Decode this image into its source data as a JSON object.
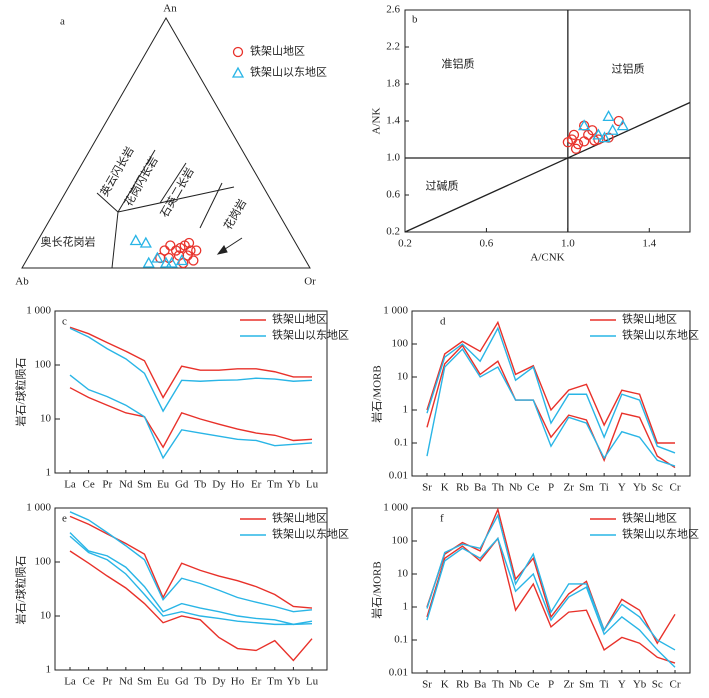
{
  "chart_data": [
    {
      "type": "ternary",
      "label": "a",
      "vertex_labels": [
        "An",
        "Ab",
        "Or"
      ],
      "field_labels": [
        "奥长花岗岩",
        "英云闪长岩",
        "花岗闪长岩",
        "石英二长岩",
        "花岗岩"
      ],
      "series": [
        {
          "name": "铁架山地区",
          "color": "#e8312a",
          "marker": "circle",
          "an": [
            0.07,
            0.09,
            0.07,
            0.08,
            0.09,
            0.1,
            0.07,
            0.05,
            0.04,
            0.02,
            0.05,
            0.03,
            0.04,
            0.07
          ],
          "or": [
            0.46,
            0.47,
            0.5,
            0.51,
            0.52,
            0.53,
            0.55,
            0.52,
            0.49,
            0.55,
            0.55,
            0.58,
            0.46,
            0.57
          ]
        },
        {
          "name": "铁架山以东地区",
          "color": "#29b5e6",
          "marker": "triangle",
          "an": [
            0.11,
            0.1,
            0.04,
            0.02,
            0.02,
            0.03,
            0.02
          ],
          "or": [
            0.34,
            0.38,
            0.45,
            0.43,
            0.51,
            0.54,
            0.49
          ]
        }
      ]
    },
    {
      "type": "scatter",
      "label": "b",
      "x_label": "A/CNK",
      "y_label": "A/NK",
      "field_labels": [
        "准铝质",
        "过铝质",
        "过碱质"
      ],
      "xlim": [
        0.2,
        1.6
      ],
      "xticks": [
        0.2,
        0.6,
        {
          "value": 1,
          "label": "1.0"
        },
        1.4
      ],
      "ylim": [
        0.2,
        2.6
      ],
      "yticks": [
        0.2,
        0.6,
        {
          "value": 1,
          "label": "1.0"
        },
        1.4,
        1.8,
        2.2,
        2.6
      ],
      "lines": [
        {
          "x": [
            1,
            1
          ],
          "y": [
            0.2,
            2.6
          ]
        },
        {
          "x": [
            0.2,
            1.6
          ],
          "y": [
            1,
            1
          ]
        },
        {
          "x": [
            0.2,
            1.6
          ],
          "y": [
            0.2,
            1.6
          ]
        }
      ],
      "series": [
        {
          "name": "铁架山地区",
          "color": "#e8312a",
          "marker": "circle",
          "x": [
            1.0,
            1.02,
            1.03,
            1.05,
            1.08,
            1.1,
            1.12,
            1.15,
            1.2,
            1.08,
            1.25,
            1.13,
            1.04
          ],
          "y": [
            1.17,
            1.2,
            1.25,
            1.15,
            1.18,
            1.25,
            1.3,
            1.2,
            1.22,
            1.35,
            1.4,
            1.19,
            1.1
          ]
        },
        {
          "name": "铁架山以东地区",
          "color": "#29b5e6",
          "marker": "triangle",
          "x": [
            1.08,
            1.15,
            1.2,
            1.22,
            1.27,
            1.18
          ],
          "y": [
            1.35,
            1.25,
            1.45,
            1.3,
            1.35,
            1.22
          ]
        }
      ]
    },
    {
      "type": "line",
      "label": "c",
      "y_label": "岩石/球粒陨石",
      "log_y": true,
      "categories": [
        "La",
        "Ce",
        "Pr",
        "Nd",
        "Sm",
        "Eu",
        "Gd",
        "Tb",
        "Dy",
        "Ho",
        "Er",
        "Tm",
        "Yb",
        "Lu"
      ],
      "ylim": [
        1,
        1000
      ],
      "yticks": [
        1,
        10,
        100,
        {
          "value": 1000,
          "label": "1 000"
        }
      ],
      "series": [
        {
          "name": "铁架山地区",
          "color": "#e8312a",
          "lines": [
            [
              500,
              380,
              260,
              180,
              120,
              25,
              95,
              80,
              80,
              85,
              85,
              75,
              60,
              60
            ],
            [
              38,
              25,
              18,
              13,
              11,
              3,
              13,
              10,
              8,
              6.5,
              5.5,
              5,
              4,
              4.2
            ]
          ]
        },
        {
          "name": "铁架山以东地区",
          "color": "#29b5e6",
          "lines": [
            [
              480,
              330,
              200,
              130,
              70,
              14,
              52,
              50,
              52,
              53,
              57,
              55,
              50,
              52
            ],
            [
              65,
              35,
              26,
              18,
              11,
              1.9,
              6.3,
              5.5,
              4.8,
              4.2,
              4,
              3.2,
              3.4,
              3.6
            ]
          ]
        }
      ]
    },
    {
      "type": "line",
      "label": "d",
      "y_label": "岩石/MORB",
      "log_y": true,
      "categories": [
        "Sr",
        "K",
        "Rb",
        "Ba",
        "Th",
        "Nb",
        "Ce",
        "P",
        "Zr",
        "Sm",
        "Ti",
        "Y",
        "Yb",
        "Sc",
        "Cr"
      ],
      "ylim": [
        0.01,
        1000
      ],
      "yticks": [
        0.01,
        0.1,
        1,
        10,
        100,
        {
          "value": 1000,
          "label": "1 000"
        }
      ],
      "series": [
        {
          "name": "铁架山地区",
          "color": "#e8312a",
          "lines": [
            [
              1,
              50,
              120,
              60,
              450,
              12,
              22,
              1,
              4,
              6,
              0.35,
              4,
              3,
              0.1,
              0.1
            ],
            [
              0.3,
              25,
              90,
              12,
              30,
              2,
              2,
              0.15,
              0.7,
              0.5,
              0.03,
              0.8,
              0.6,
              0.04,
              0.018
            ]
          ]
        },
        {
          "name": "铁架山以东地区",
          "color": "#29b5e6",
          "lines": [
            [
              0.8,
              40,
              100,
              30,
              300,
              8,
              20,
              0.4,
              3,
              3,
              0.15,
              3,
              2,
              0.08,
              0.05
            ],
            [
              0.04,
              20,
              70,
              10,
              20,
              2,
              2,
              0.08,
              0.6,
              0.4,
              0.035,
              0.22,
              0.15,
              0.03,
              0.02
            ]
          ]
        }
      ]
    },
    {
      "type": "line",
      "label": "e",
      "y_label": "岩石/球粒陨石",
      "log_y": true,
      "categories": [
        "La",
        "Ce",
        "Pr",
        "Nd",
        "Sm",
        "Eu",
        "Gd",
        "Tb",
        "Dy",
        "Ho",
        "Er",
        "Tm",
        "Yb",
        "Lu"
      ],
      "ylim": [
        1,
        1000
      ],
      "yticks": [
        1,
        10,
        100,
        {
          "value": 1000,
          "label": "1 000"
        }
      ],
      "series": [
        {
          "name": "铁架山地区",
          "color": "#e8312a",
          "lines": [
            [
              700,
              500,
              330,
              220,
              140,
              22,
              95,
              70,
              55,
              45,
              35,
              25,
              15,
              14
            ],
            [
              160,
              95,
              55,
              33,
              17,
              7.5,
              10,
              8.5,
              4,
              2.5,
              2.3,
              3.5,
              1.5,
              3.8
            ]
          ]
        },
        {
          "name": "铁架山以东地区",
          "color": "#29b5e6",
          "lines": [
            [
              850,
              600,
              350,
              200,
              110,
              20,
              50,
              40,
              30,
              22,
              18,
              15,
              12,
              13
            ],
            [
              350,
              160,
              130,
              80,
              35,
              12,
              17,
              14,
              12,
              10,
              9,
              8.5,
              7,
              8
            ],
            [
              300,
              150,
              110,
              60,
              25,
              10,
              12,
              10,
              9,
              8,
              7.5,
              7,
              7,
              7.2
            ]
          ]
        }
      ]
    },
    {
      "type": "line",
      "label": "f",
      "y_label": "岩石/MORB",
      "log_y": true,
      "categories": [
        "Sr",
        "K",
        "Rb",
        "Ba",
        "Th",
        "Nb",
        "Ce",
        "P",
        "Zr",
        "Sm",
        "Ti",
        "Y",
        "Yb",
        "Sc",
        "Cr"
      ],
      "ylim": [
        0.01,
        1000
      ],
      "yticks": [
        0.01,
        0.1,
        1,
        10,
        100,
        {
          "value": 1000,
          "label": "1 000"
        }
      ],
      "series": [
        {
          "name": "铁架山地区",
          "color": "#e8312a",
          "lines": [
            [
              1,
              40,
              90,
              50,
              900,
              7,
              30,
              0.5,
              2.5,
              6,
              0.2,
              1.7,
              0.8,
              0.08,
              0.6
            ],
            [
              0.5,
              30,
              70,
              25,
              120,
              0.8,
              5,
              0.25,
              0.7,
              0.8,
              0.05,
              0.12,
              0.08,
              0.03,
              0.02
            ]
          ]
        },
        {
          "name": "铁架山以东地区",
          "color": "#29b5e6",
          "lines": [
            [
              0.9,
              45,
              80,
              60,
              600,
              5,
              40,
              0.7,
              5,
              5,
              0.2,
              1.2,
              0.5,
              0.1,
              0.05
            ],
            [
              0.4,
              25,
              60,
              30,
              120,
              3,
              10,
              0.4,
              2,
              4,
              0.15,
              0.5,
              0.2,
              0.05,
              0.015
            ]
          ]
        }
      ]
    }
  ]
}
